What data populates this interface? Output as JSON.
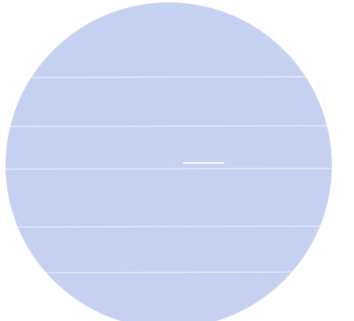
{
  "colors": {
    "background": "#ffffff",
    "disc_fill": "#c3cff1",
    "disc_texture_light": "#dbe3f8",
    "disc_texture_dark": "#a9b9e8",
    "seam": "#e6ebfa",
    "rod": "#8c2f4a",
    "rod_fade": "#d9c9dc"
  }
}
